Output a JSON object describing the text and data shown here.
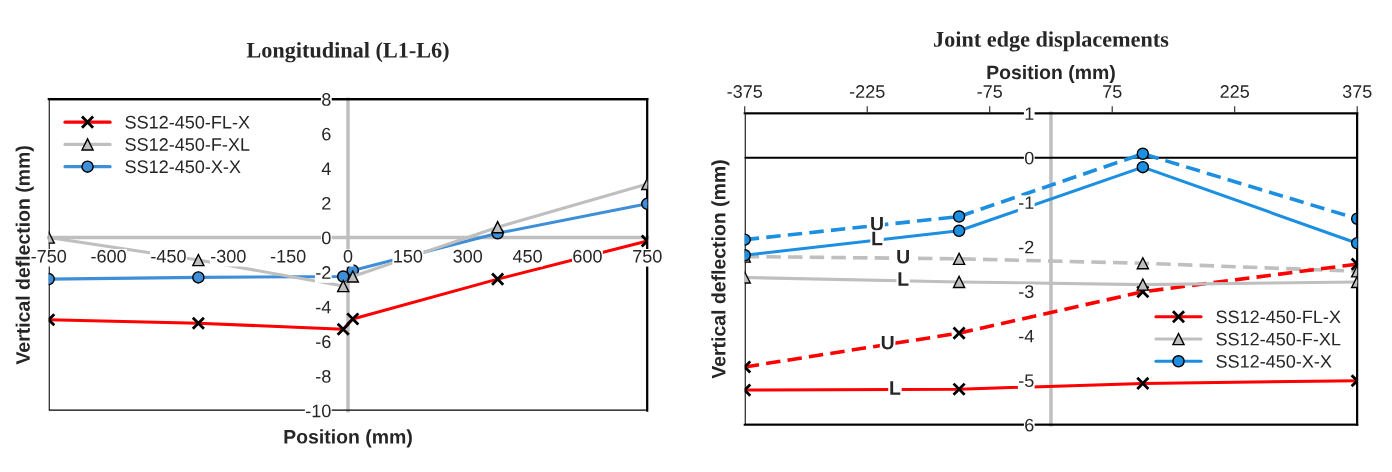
{
  "chart_data": [
    {
      "type": "line",
      "title": "Longitudinal (L1-L6)",
      "xlabel": "Position (mm)",
      "ylabel": "Vertical deflection (mm)",
      "x": [
        -750,
        -375,
        -12,
        12,
        375,
        750
      ],
      "xlim": [
        -750,
        750
      ],
      "xticks": [
        -750,
        -600,
        -450,
        -300,
        -150,
        0,
        150,
        300,
        450,
        600,
        750
      ],
      "ylim": [
        -10,
        8
      ],
      "yticks": [
        -10,
        -8,
        -6,
        -4,
        -2,
        0,
        2,
        4,
        6,
        8
      ],
      "legend": "upper left",
      "grid": false,
      "series": [
        {
          "name": "SS12-450-FL-X",
          "color": "#ff0000",
          "marker": "cross",
          "line_style": "solid",
          "values": [
            -4.75,
            -4.95,
            -5.3,
            -4.7,
            -2.4,
            -0.2
          ]
        },
        {
          "name": "SS12-450-F-XL",
          "color": "#bfbfbf",
          "marker": "triangle",
          "line_style": "solid",
          "values": [
            0.0,
            -1.3,
            -2.8,
            -2.25,
            0.6,
            3.1
          ]
        },
        {
          "name": "SS12-450-X-X",
          "color": "#3f8fd8",
          "marker": "circle",
          "line_style": "solid",
          "values": [
            -2.4,
            -2.3,
            -2.25,
            -1.9,
            0.25,
            1.95
          ]
        }
      ]
    },
    {
      "type": "line",
      "title": "Joint edge displacements",
      "x2label": "Position (mm)",
      "ylabel": "Vertical deflection (mm)",
      "x": [
        -375,
        -112.5,
        112.5,
        375
      ],
      "xlim": [
        -375,
        375
      ],
      "xticks": [
        -375,
        -225,
        -75,
        75,
        225,
        375
      ],
      "ylim": [
        -6,
        1
      ],
      "yticks": [
        {
          "value": -6,
          "label": "6"
        },
        -5,
        -4,
        -3,
        -2,
        -1,
        0,
        1
      ],
      "legend": "right",
      "grid": false,
      "ref_lines": [
        {
          "axis": "y",
          "value": 0,
          "color": "#000000"
        }
      ],
      "series": [
        {
          "name": "SS12-450-FL-X",
          "color": "#ff0000",
          "marker": "cross",
          "line_style": "solid",
          "values": [
            -5.22,
            -5.2,
            -5.07,
            -5.01
          ]
        },
        {
          "name": "SS12-450-F-XL",
          "color": "#bfbfbf",
          "marker": "triangle",
          "line_style": "solid",
          "values": [
            -2.69,
            -2.79,
            -2.85,
            -2.79
          ]
        },
        {
          "name": "SS12-450-X-X",
          "color": "#1c8fe0",
          "marker": "circle",
          "line_style": "solid",
          "values": [
            -2.19,
            -1.64,
            -0.21,
            -1.92
          ]
        },
        {
          "color": "#ff0000",
          "marker": "cross",
          "line_style": "dashed",
          "values": [
            -4.7,
            -3.94,
            -3.01,
            -2.39
          ]
        },
        {
          "color": "#bfbfbf",
          "marker": "triangle",
          "line_style": "dashed",
          "values": [
            -2.22,
            -2.27,
            -2.37,
            -2.55
          ]
        },
        {
          "color": "#1c8fe0",
          "marker": "circle",
          "line_style": "dashed",
          "values": [
            -1.84,
            -1.32,
            0.09,
            -1.37
          ]
        }
      ],
      "annotations": [
        {
          "text": "U",
          "x": -213,
          "y": -1.52
        },
        {
          "text": "L",
          "x": -213,
          "y": -1.85
        },
        {
          "text": "U",
          "x": -181,
          "y": -2.26
        },
        {
          "text": "L",
          "x": -181,
          "y": -2.76
        },
        {
          "text": "U",
          "x": -200,
          "y": -4.19
        },
        {
          "text": "L",
          "x": -191,
          "y": -5.21
        }
      ]
    }
  ]
}
